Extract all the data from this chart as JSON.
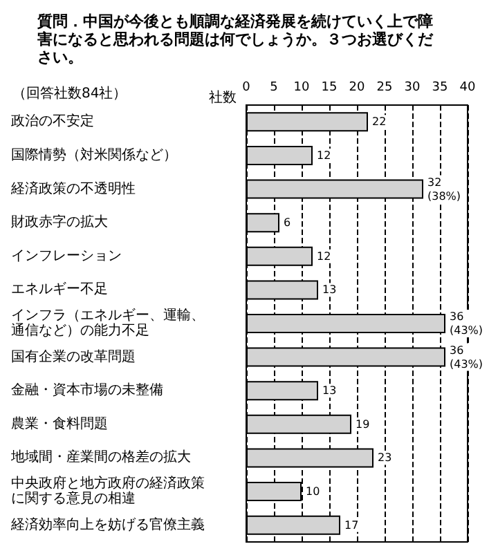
{
  "chart_data": {
    "type": "bar",
    "orientation": "horizontal",
    "title": "質問．中国が今後とも順調な経済発展を続けていく上で障害になると思われる問題は何でしょうか。３つお選びください。",
    "subtitle": "（回答社数84社）",
    "xlabel": "社数",
    "categories": [
      "政治の不安定",
      "国際情勢（対米関係など）",
      "経済政策の不透明性",
      "財政赤字の拡大",
      "インフレーション",
      "エネルギー不足",
      "インフラ（エネルギー、運輸、通信など）の能力不足",
      "国有企業の改革問題",
      "金融・資本市場の未整備",
      "農業・食料問題",
      "地域間・産業間の格差の拡大",
      "中央政府と地方政府の経済政策に関する意見の相違",
      "経済効率向上を妨げる官僚主義"
    ],
    "values": [
      22,
      12,
      32,
      6,
      12,
      13,
      36,
      36,
      13,
      19,
      23,
      10,
      17
    ],
    "value_labels": [
      "22",
      "12",
      "32\n(38%)",
      "6",
      "12",
      "13",
      "36\n(43%)",
      "36\n(43%)",
      "13",
      "19",
      "23",
      "10",
      "17"
    ],
    "color": "#d3d3d3",
    "xlim": [
      0,
      40
    ],
    "xticks": [
      0,
      5,
      10,
      15,
      20,
      25,
      30,
      35,
      40
    ],
    "grid": "x"
  }
}
